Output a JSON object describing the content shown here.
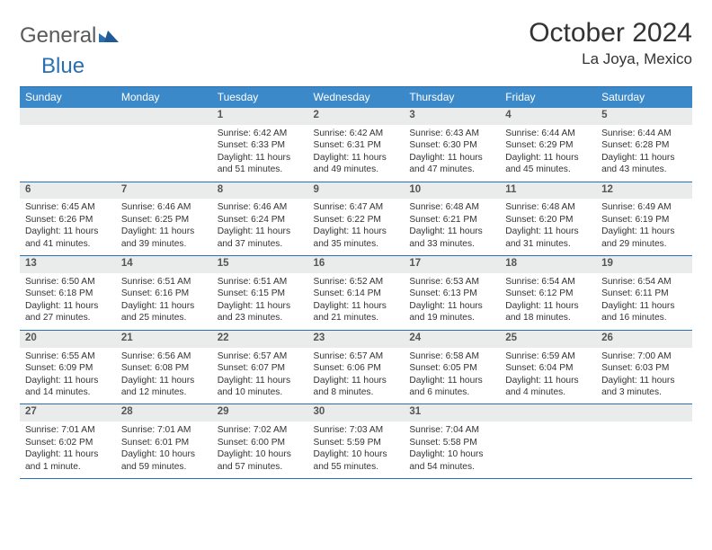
{
  "brand": {
    "part1": "General",
    "part2": "Blue"
  },
  "title": {
    "month": "October 2024",
    "location": "La Joya, Mexico"
  },
  "colors": {
    "header_bg": "#3b89c9",
    "header_text": "#ffffff",
    "border": "#2b6fb3",
    "daynum_bg": "#e9eceb",
    "text": "#333333",
    "logo_gray": "#5a5a5a",
    "logo_blue": "#2b6fb3"
  },
  "weekdays": [
    "Sunday",
    "Monday",
    "Tuesday",
    "Wednesday",
    "Thursday",
    "Friday",
    "Saturday"
  ],
  "weeks": [
    [
      {
        "num": "",
        "lines": []
      },
      {
        "num": "",
        "lines": []
      },
      {
        "num": "1",
        "lines": [
          "Sunrise: 6:42 AM",
          "Sunset: 6:33 PM",
          "Daylight: 11 hours and 51 minutes."
        ]
      },
      {
        "num": "2",
        "lines": [
          "Sunrise: 6:42 AM",
          "Sunset: 6:31 PM",
          "Daylight: 11 hours and 49 minutes."
        ]
      },
      {
        "num": "3",
        "lines": [
          "Sunrise: 6:43 AM",
          "Sunset: 6:30 PM",
          "Daylight: 11 hours and 47 minutes."
        ]
      },
      {
        "num": "4",
        "lines": [
          "Sunrise: 6:44 AM",
          "Sunset: 6:29 PM",
          "Daylight: 11 hours and 45 minutes."
        ]
      },
      {
        "num": "5",
        "lines": [
          "Sunrise: 6:44 AM",
          "Sunset: 6:28 PM",
          "Daylight: 11 hours and 43 minutes."
        ]
      }
    ],
    [
      {
        "num": "6",
        "lines": [
          "Sunrise: 6:45 AM",
          "Sunset: 6:26 PM",
          "Daylight: 11 hours and 41 minutes."
        ]
      },
      {
        "num": "7",
        "lines": [
          "Sunrise: 6:46 AM",
          "Sunset: 6:25 PM",
          "Daylight: 11 hours and 39 minutes."
        ]
      },
      {
        "num": "8",
        "lines": [
          "Sunrise: 6:46 AM",
          "Sunset: 6:24 PM",
          "Daylight: 11 hours and 37 minutes."
        ]
      },
      {
        "num": "9",
        "lines": [
          "Sunrise: 6:47 AM",
          "Sunset: 6:22 PM",
          "Daylight: 11 hours and 35 minutes."
        ]
      },
      {
        "num": "10",
        "lines": [
          "Sunrise: 6:48 AM",
          "Sunset: 6:21 PM",
          "Daylight: 11 hours and 33 minutes."
        ]
      },
      {
        "num": "11",
        "lines": [
          "Sunrise: 6:48 AM",
          "Sunset: 6:20 PM",
          "Daylight: 11 hours and 31 minutes."
        ]
      },
      {
        "num": "12",
        "lines": [
          "Sunrise: 6:49 AM",
          "Sunset: 6:19 PM",
          "Daylight: 11 hours and 29 minutes."
        ]
      }
    ],
    [
      {
        "num": "13",
        "lines": [
          "Sunrise: 6:50 AM",
          "Sunset: 6:18 PM",
          "Daylight: 11 hours and 27 minutes."
        ]
      },
      {
        "num": "14",
        "lines": [
          "Sunrise: 6:51 AM",
          "Sunset: 6:16 PM",
          "Daylight: 11 hours and 25 minutes."
        ]
      },
      {
        "num": "15",
        "lines": [
          "Sunrise: 6:51 AM",
          "Sunset: 6:15 PM",
          "Daylight: 11 hours and 23 minutes."
        ]
      },
      {
        "num": "16",
        "lines": [
          "Sunrise: 6:52 AM",
          "Sunset: 6:14 PM",
          "Daylight: 11 hours and 21 minutes."
        ]
      },
      {
        "num": "17",
        "lines": [
          "Sunrise: 6:53 AM",
          "Sunset: 6:13 PM",
          "Daylight: 11 hours and 19 minutes."
        ]
      },
      {
        "num": "18",
        "lines": [
          "Sunrise: 6:54 AM",
          "Sunset: 6:12 PM",
          "Daylight: 11 hours and 18 minutes."
        ]
      },
      {
        "num": "19",
        "lines": [
          "Sunrise: 6:54 AM",
          "Sunset: 6:11 PM",
          "Daylight: 11 hours and 16 minutes."
        ]
      }
    ],
    [
      {
        "num": "20",
        "lines": [
          "Sunrise: 6:55 AM",
          "Sunset: 6:09 PM",
          "Daylight: 11 hours and 14 minutes."
        ]
      },
      {
        "num": "21",
        "lines": [
          "Sunrise: 6:56 AM",
          "Sunset: 6:08 PM",
          "Daylight: 11 hours and 12 minutes."
        ]
      },
      {
        "num": "22",
        "lines": [
          "Sunrise: 6:57 AM",
          "Sunset: 6:07 PM",
          "Daylight: 11 hours and 10 minutes."
        ]
      },
      {
        "num": "23",
        "lines": [
          "Sunrise: 6:57 AM",
          "Sunset: 6:06 PM",
          "Daylight: 11 hours and 8 minutes."
        ]
      },
      {
        "num": "24",
        "lines": [
          "Sunrise: 6:58 AM",
          "Sunset: 6:05 PM",
          "Daylight: 11 hours and 6 minutes."
        ]
      },
      {
        "num": "25",
        "lines": [
          "Sunrise: 6:59 AM",
          "Sunset: 6:04 PM",
          "Daylight: 11 hours and 4 minutes."
        ]
      },
      {
        "num": "26",
        "lines": [
          "Sunrise: 7:00 AM",
          "Sunset: 6:03 PM",
          "Daylight: 11 hours and 3 minutes."
        ]
      }
    ],
    [
      {
        "num": "27",
        "lines": [
          "Sunrise: 7:01 AM",
          "Sunset: 6:02 PM",
          "Daylight: 11 hours and 1 minute."
        ]
      },
      {
        "num": "28",
        "lines": [
          "Sunrise: 7:01 AM",
          "Sunset: 6:01 PM",
          "Daylight: 10 hours and 59 minutes."
        ]
      },
      {
        "num": "29",
        "lines": [
          "Sunrise: 7:02 AM",
          "Sunset: 6:00 PM",
          "Daylight: 10 hours and 57 minutes."
        ]
      },
      {
        "num": "30",
        "lines": [
          "Sunrise: 7:03 AM",
          "Sunset: 5:59 PM",
          "Daylight: 10 hours and 55 minutes."
        ]
      },
      {
        "num": "31",
        "lines": [
          "Sunrise: 7:04 AM",
          "Sunset: 5:58 PM",
          "Daylight: 10 hours and 54 minutes."
        ]
      },
      {
        "num": "",
        "lines": []
      },
      {
        "num": "",
        "lines": []
      }
    ]
  ]
}
